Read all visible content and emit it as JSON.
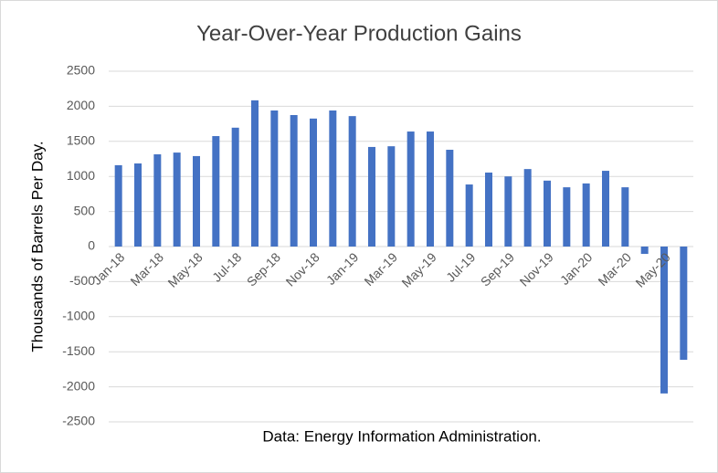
{
  "chart_data": {
    "type": "bar",
    "title": "Year-Over-Year Production Gains",
    "y_label": "Thousands of Barrels Per Day.",
    "note": "Data: Energy Information Administration.",
    "categories": [
      "Jan-18",
      null,
      "Mar-18",
      null,
      "May-18",
      null,
      "Jul-18",
      null,
      "Sep-18",
      null,
      "Nov-18",
      null,
      "Jan-19",
      null,
      "Mar-19",
      null,
      "May-19",
      null,
      "Jul-19",
      null,
      "Sep-19",
      null,
      "Nov-19",
      null,
      "Jan-20",
      null,
      "Mar-20",
      null,
      "May-20",
      null
    ],
    "values": [
      1160,
      1185,
      1315,
      1340,
      1290,
      1575,
      1695,
      2085,
      1940,
      1875,
      1825,
      1940,
      1860,
      1420,
      1430,
      1640,
      1640,
      1380,
      885,
      1055,
      1000,
      1105,
      940,
      845,
      900,
      1080,
      845,
      -105,
      -2095,
      -1615
    ],
    "color": "#4472c4",
    "ylim": [
      -2500,
      2500
    ],
    "yticks": [
      2500,
      2000,
      1500,
      1000,
      500,
      0,
      -500,
      -1000,
      -1500,
      -2000,
      -2500
    ],
    "grid": true
  }
}
